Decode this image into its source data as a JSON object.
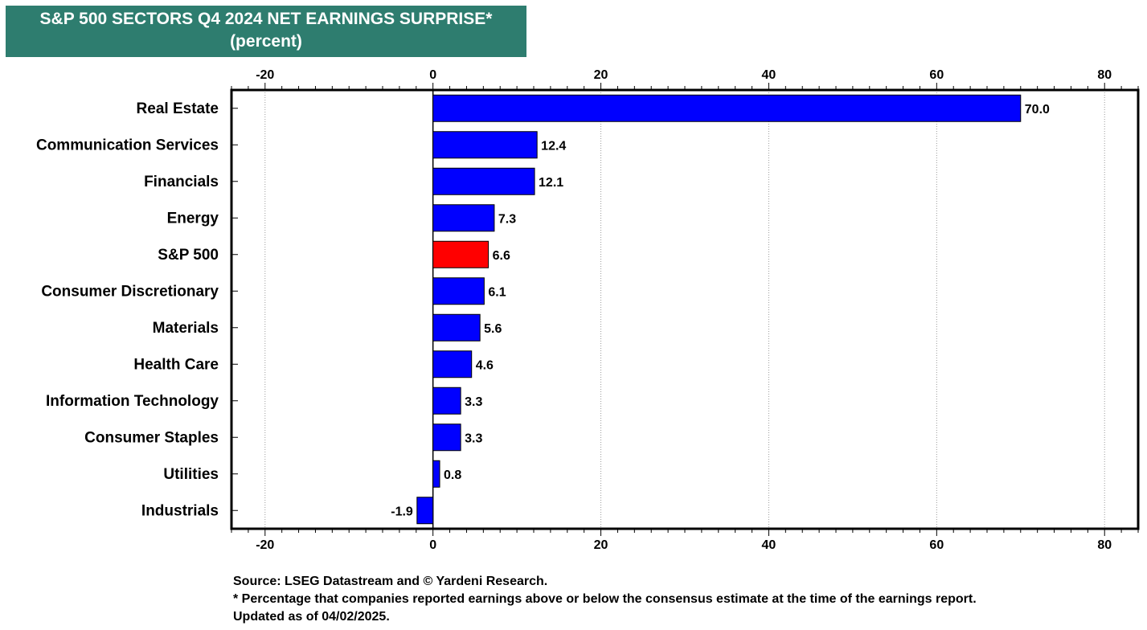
{
  "title": {
    "line1": "S&P 500 SECTORS Q4 2024 NET EARNINGS SURPRISE*",
    "line2": "(percent)"
  },
  "notes": {
    "source": "Source: LSEG Datastream and © Yardeni Research.",
    "footnote": "* Percentage that companies reported earnings above or below the consensus estimate at the time of the earnings report.",
    "updated": "Updated as of 04/02/2025."
  },
  "colors": {
    "title_bg": "#2e7d6f",
    "bar": "#0000ff",
    "highlight_bar": "#ff0000"
  },
  "chart_data": {
    "type": "bar",
    "orientation": "horizontal",
    "title": "S&P 500 SECTORS Q4 2024 NET EARNINGS SURPRISE*",
    "subtitle": "(percent)",
    "categories": [
      "Real Estate",
      "Communication Services",
      "Financials",
      "Energy",
      "S&P 500",
      "Consumer Discretionary",
      "Materials",
      "Health Care",
      "Information Technology",
      "Consumer Staples",
      "Utilities",
      "Industrials"
    ],
    "values": [
      70.0,
      12.4,
      12.1,
      7.3,
      6.6,
      6.1,
      5.6,
      4.6,
      3.3,
      3.3,
      0.8,
      -1.9
    ],
    "value_labels": [
      "70.0",
      "12.4",
      "12.1",
      "7.3",
      "6.6",
      "6.1",
      "5.6",
      "4.6",
      "3.3",
      "3.3",
      "0.8",
      "-1.9"
    ],
    "highlight": "S&P 500",
    "xlim": [
      -24,
      84
    ],
    "xticks": [
      -20,
      0,
      20,
      40,
      60,
      80
    ],
    "xtick_labels": [
      "-20",
      "0",
      "20",
      "40",
      "60",
      "80"
    ],
    "xlabel": "",
    "ylabel": "",
    "grid": true,
    "axis_labels_top_and_bottom": true
  }
}
